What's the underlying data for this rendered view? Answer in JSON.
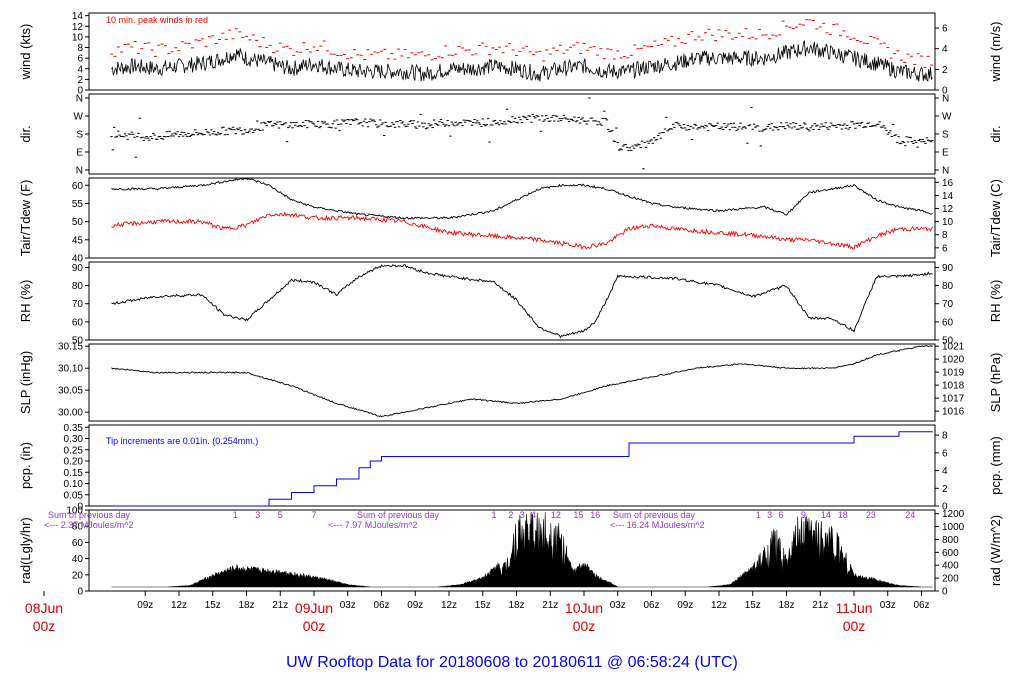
{
  "colors": {
    "main": "#000000",
    "peak": "#ff0000",
    "dew": "#ff0000",
    "precip": "#0000ff",
    "annot": "#9933cc",
    "date": "#dd0000",
    "title": "#0000ff"
  },
  "title": "UW Rooftop Data for 20180608  to  20180611 @ 06:58:24  (UTC)",
  "x_axis": {
    "hour_ticks": [
      {
        "h": 9,
        "label": "09z"
      },
      {
        "h": 12,
        "label": "12z"
      },
      {
        "h": 15,
        "label": "15z"
      },
      {
        "h": 18,
        "label": "18z"
      },
      {
        "h": 21,
        "label": "21z"
      },
      {
        "h": 27,
        "label": "03z"
      },
      {
        "h": 30,
        "label": "06z"
      },
      {
        "h": 33,
        "label": "09z"
      },
      {
        "h": 36,
        "label": "12z"
      },
      {
        "h": 39,
        "label": "15z"
      },
      {
        "h": 42,
        "label": "18z"
      },
      {
        "h": 45,
        "label": "21z"
      },
      {
        "h": 51,
        "label": "03z"
      },
      {
        "h": 54,
        "label": "06z"
      },
      {
        "h": 57,
        "label": "09z"
      },
      {
        "h": 60,
        "label": "12z"
      },
      {
        "h": 63,
        "label": "15z"
      },
      {
        "h": 66,
        "label": "18z"
      },
      {
        "h": 69,
        "label": "21z"
      },
      {
        "h": 75,
        "label": "03z"
      },
      {
        "h": 78,
        "label": "06z"
      }
    ],
    "date_ticks": [
      {
        "h": 0,
        "day": "08Jun",
        "hour": "00z"
      },
      {
        "h": 24,
        "day": "09Jun",
        "hour": "00z"
      },
      {
        "h": 48,
        "day": "10Jun",
        "hour": "00z"
      },
      {
        "h": 72,
        "day": "11Jun",
        "hour": "00z"
      }
    ]
  },
  "panels": {
    "wind": {
      "left_label": "wind (kts)",
      "right_label": "wind (m/s)",
      "annotation": "10 min. peak winds in red",
      "left_ticks": [
        "0",
        "2",
        "4",
        "6",
        "8",
        "10",
        "12",
        "14"
      ],
      "right_ticks": [
        "0",
        "2",
        "4",
        "6"
      ]
    },
    "dir": {
      "left_label": "dir.",
      "right_label": "dir.",
      "ticks": [
        "N",
        "E",
        "S",
        "W",
        "N"
      ]
    },
    "temp": {
      "left_label": "Tair/Tdew (F)",
      "right_label": "Tair/Tdew (C)",
      "left_ticks": [
        "40",
        "45",
        "50",
        "55",
        "60"
      ],
      "right_ticks": [
        "6",
        "8",
        "10",
        "12",
        "14",
        "16"
      ]
    },
    "rh": {
      "left_label": "RH (%)",
      "right_label": "RH (%)",
      "ticks": [
        "50",
        "60",
        "70",
        "80",
        "90"
      ]
    },
    "slp": {
      "left_label": "SLP (inHg)",
      "right_label": "SLP (hPa)",
      "left_ticks": [
        "30.00",
        "30.05",
        "30.10",
        "30.15"
      ],
      "right_ticks": [
        "1016",
        "1017",
        "1018",
        "1019",
        "1020",
        "1021"
      ]
    },
    "pcp": {
      "left_label": "pcp. (in)",
      "right_label": "pcp. (mm)",
      "annotation": "Tip increments are 0.01in. (0.254mm.)",
      "left_ticks": [
        "0",
        "0.05",
        "0.10",
        "0.15",
        "0.20",
        "0.25",
        "0.30",
        "0.35"
      ],
      "right_ticks": [
        "0",
        "2",
        "4",
        "6",
        "8"
      ]
    },
    "rad": {
      "left_label": "rad(Lgly/hr)",
      "right_label": "rad (W/m^2)",
      "left_ticks": [
        "0",
        "20",
        "40",
        "60",
        "80",
        "100"
      ],
      "right_ticks": [
        "0",
        "200",
        "400",
        "600",
        "800",
        "1000",
        "1200"
      ],
      "sums": [
        {
          "line1": "Sum of previous day",
          "line2": "<--- 2.37 MJoules/m^2"
        },
        {
          "line1": "Sum of previous day",
          "line2": "<--- 7.97 MJoules/m^2"
        },
        {
          "line1": "Sum of previous day",
          "line2": "<--- 16.24 MJoules/m^2"
        }
      ],
      "hour_marks": [
        {
          "h": 17,
          "label": "1"
        },
        {
          "h": 19,
          "label": "3"
        },
        {
          "h": 21,
          "label": "5"
        },
        {
          "h": 24,
          "label": "7"
        },
        {
          "h": 40,
          "label": "1"
        },
        {
          "h": 41.5,
          "label": "2"
        },
        {
          "h": 42.5,
          "label": "3"
        },
        {
          "h": 43.5,
          "label": "4"
        },
        {
          "h": 45.5,
          "label": "12"
        },
        {
          "h": 47.5,
          "label": "15"
        },
        {
          "h": 49,
          "label": "16"
        },
        {
          "h": 63.5,
          "label": "1"
        },
        {
          "h": 64.5,
          "label": "3"
        },
        {
          "h": 65.5,
          "label": "6"
        },
        {
          "h": 67.5,
          "label": "9"
        },
        {
          "h": 69.5,
          "label": "14"
        },
        {
          "h": 71,
          "label": "18"
        },
        {
          "h": 73.5,
          "label": "23"
        },
        {
          "h": 77,
          "label": "24"
        }
      ]
    }
  },
  "chart_data": [
    {
      "type": "line",
      "name": "wind",
      "x_unit": "hours since 08Jun 00z",
      "ylim": [
        0,
        14.5
      ],
      "series": [
        {
          "name": "wind",
          "x": [
            6,
            8,
            10,
            12,
            14,
            16,
            17,
            18,
            20,
            22,
            24,
            26,
            28,
            30,
            32,
            34,
            36,
            38,
            40,
            42,
            44,
            46,
            48,
            50,
            52,
            54,
            56,
            58,
            60,
            62,
            64,
            66,
            68,
            70,
            72,
            74,
            76,
            78,
            79
          ],
          "y": [
            4,
            4.5,
            4,
            4.5,
            5,
            6,
            7,
            6,
            5,
            4,
            5,
            4,
            3.5,
            3.5,
            3.5,
            3,
            4,
            4,
            4.5,
            4,
            3,
            4,
            4.5,
            3.5,
            3.5,
            4.5,
            5,
            6,
            6,
            6,
            6,
            7,
            8,
            7,
            6,
            5,
            3.5,
            3,
            3
          ]
        },
        {
          "name": "10 min. peak",
          "x": [
            6,
            8,
            10,
            12,
            14,
            16,
            17,
            18,
            20,
            22,
            24,
            26,
            28,
            30,
            32,
            34,
            36,
            38,
            40,
            42,
            44,
            46,
            48,
            50,
            52,
            54,
            56,
            58,
            60,
            62,
            64,
            66,
            68,
            70,
            72,
            74,
            76,
            78,
            79
          ],
          "y": [
            7,
            7.5,
            7,
            7.5,
            8.5,
            9.5,
            10,
            9.5,
            8,
            7,
            8,
            7,
            6,
            6,
            6,
            6,
            7,
            7,
            7.5,
            7,
            6,
            7,
            7.5,
            6.5,
            6.5,
            7.5,
            8.5,
            10,
            10,
            10,
            10,
            11.5,
            12.5,
            11,
            10,
            8,
            6,
            5,
            5
          ]
        }
      ]
    },
    {
      "type": "scatter",
      "name": "dir",
      "x_unit": "hours since 08Jun 00z",
      "y_categories": [
        "N",
        "E",
        "S",
        "W",
        "N"
      ],
      "x": [
        6,
        8,
        10,
        12,
        14,
        16,
        18,
        20,
        22,
        24,
        26,
        28,
        30,
        32,
        34,
        36,
        38,
        40,
        42,
        44,
        46,
        48,
        50,
        51,
        52,
        54,
        56,
        58,
        60,
        62,
        64,
        66,
        68,
        70,
        72,
        74,
        76,
        78,
        79
      ],
      "y_deg": [
        180,
        170,
        165,
        180,
        185,
        195,
        200,
        225,
        225,
        230,
        230,
        240,
        230,
        230,
        225,
        240,
        235,
        240,
        255,
        260,
        255,
        250,
        240,
        120,
        110,
        135,
        220,
        215,
        215,
        215,
        210,
        220,
        215,
        220,
        225,
        235,
        150,
        140,
        145
      ]
    },
    {
      "type": "line",
      "name": "temp",
      "x_unit": "hours since 08Jun 00z",
      "ylim": [
        40,
        62
      ],
      "series": [
        {
          "name": "Tair",
          "x": [
            6,
            10,
            14,
            16,
            18,
            20,
            22,
            24,
            28,
            32,
            36,
            40,
            44,
            46,
            48,
            50,
            52,
            54,
            56,
            60,
            64,
            66,
            68,
            70,
            72,
            74,
            76,
            78,
            79
          ],
          "y": [
            59,
            59,
            60,
            61,
            62,
            60,
            56,
            54,
            52,
            51,
            51,
            53,
            59,
            60,
            60,
            59,
            57,
            55,
            54,
            53,
            54,
            52,
            58,
            59,
            60,
            56,
            54,
            53,
            52
          ]
        },
        {
          "name": "Tdew",
          "x": [
            6,
            10,
            14,
            16,
            18,
            20,
            22,
            24,
            28,
            32,
            36,
            40,
            44,
            46,
            48,
            50,
            52,
            54,
            56,
            60,
            64,
            66,
            68,
            70,
            72,
            74,
            76,
            78,
            79
          ],
          "y": [
            49,
            50,
            50,
            48,
            49,
            52,
            52,
            51,
            51,
            50,
            47,
            46,
            45,
            44,
            43,
            44,
            48,
            49,
            48,
            47,
            46,
            45,
            45,
            44,
            43,
            46,
            48,
            48,
            48
          ]
        }
      ]
    },
    {
      "type": "line",
      "name": "rh",
      "x_unit": "hours since 08Jun 00z",
      "ylim": [
        50,
        93
      ],
      "series": [
        {
          "name": "RH",
          "x": [
            6,
            10,
            14,
            16,
            18,
            20,
            22,
            24,
            26,
            28,
            30,
            32,
            34,
            36,
            40,
            42,
            44,
            46,
            48,
            49,
            50,
            51,
            52,
            56,
            60,
            63,
            66,
            68,
            70,
            72,
            74,
            76,
            78,
            79
          ],
          "y": [
            70,
            74,
            75,
            64,
            61,
            72,
            83,
            82,
            75,
            85,
            91,
            91,
            87,
            85,
            82,
            72,
            57,
            52,
            55,
            60,
            72,
            85,
            85,
            84,
            80,
            74,
            80,
            62,
            62,
            55,
            85,
            85,
            86,
            87
          ]
        }
      ]
    },
    {
      "type": "line",
      "name": "slp",
      "x_unit": "hours since 08Jun 00z",
      "ylim": [
        29.98,
        30.155
      ],
      "series": [
        {
          "name": "SLP",
          "x": [
            6,
            10,
            14,
            18,
            22,
            26,
            30,
            34,
            38,
            42,
            46,
            50,
            54,
            58,
            62,
            66,
            70,
            72,
            74,
            76,
            78,
            79
          ],
          "y": [
            30.1,
            30.09,
            30.09,
            30.09,
            30.06,
            30.02,
            29.99,
            30.01,
            30.03,
            30.02,
            30.03,
            30.06,
            30.08,
            30.1,
            30.11,
            30.1,
            30.1,
            30.11,
            30.13,
            30.14,
            30.15,
            30.15
          ]
        }
      ]
    },
    {
      "type": "line",
      "name": "pcp",
      "x_unit": "hours since 08Jun 00z",
      "ylim": [
        0,
        0.36
      ],
      "series": [
        {
          "name": "pcp",
          "x": [
            6,
            18.5,
            20,
            22,
            24,
            26,
            28,
            29,
            30,
            48,
            52,
            54,
            56,
            72,
            76,
            78,
            79
          ],
          "y": [
            0,
            0,
            0.03,
            0.06,
            0.09,
            0.12,
            0.17,
            0.2,
            0.22,
            0.22,
            0.28,
            0.28,
            0.28,
            0.31,
            0.33,
            0.33,
            0.33
          ]
        }
      ]
    },
    {
      "type": "area",
      "name": "rad",
      "x_unit": "hours since 08Jun 00z",
      "ylim": [
        0,
        100
      ],
      "series": [
        {
          "name": "rad",
          "x": [
            6,
            11,
            13,
            15,
            17,
            19,
            21,
            23,
            25,
            27,
            29,
            35,
            37,
            39,
            41,
            42,
            43,
            44,
            45,
            46,
            47,
            48,
            49,
            50,
            51,
            59,
            61,
            63,
            64,
            65,
            66,
            67,
            68,
            69,
            70,
            71,
            72,
            73,
            74,
            75,
            76,
            78,
            79
          ],
          "y": [
            0,
            0,
            2,
            15,
            25,
            22,
            20,
            15,
            10,
            3,
            0,
            0,
            3,
            12,
            35,
            95,
            100,
            95,
            100,
            80,
            20,
            30,
            15,
            8,
            0,
            0,
            3,
            25,
            55,
            80,
            40,
            90,
            95,
            90,
            85,
            60,
            15,
            12,
            10,
            5,
            2,
            0,
            0
          ]
        }
      ]
    }
  ]
}
